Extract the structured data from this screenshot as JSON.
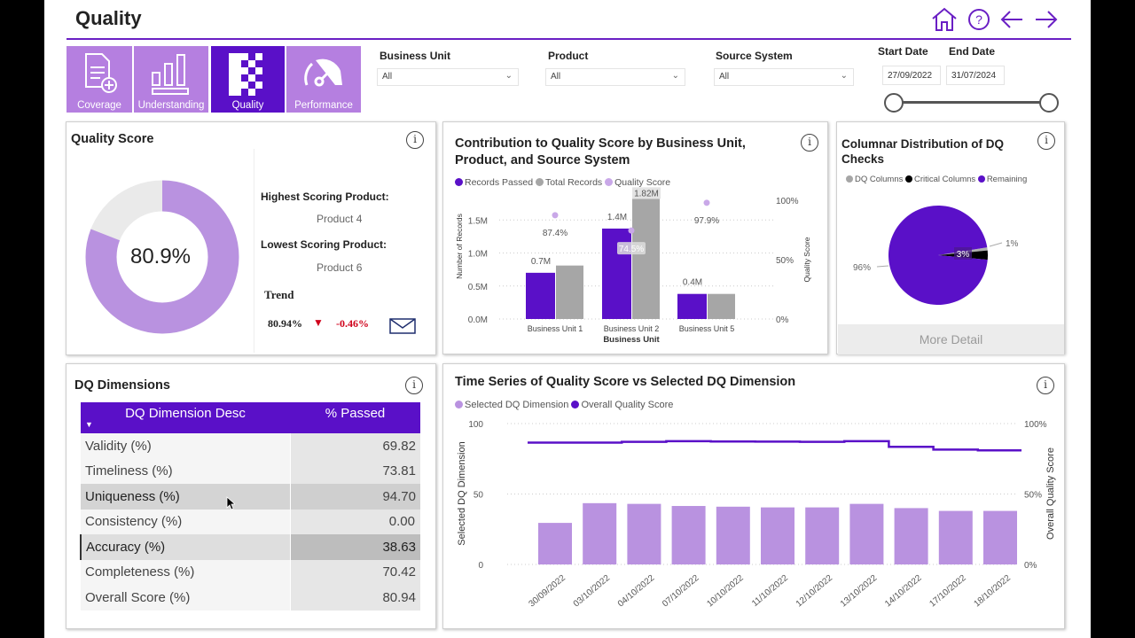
{
  "header": {
    "title": "Quality",
    "icons": [
      "home-icon",
      "help-icon",
      "back-arrow-icon",
      "forward-arrow-icon"
    ]
  },
  "nav": {
    "tiles": [
      {
        "label": "Coverage",
        "icon": "document-add-icon"
      },
      {
        "label": "Understanding",
        "icon": "bar-chart-icon"
      },
      {
        "label": "Quality",
        "icon": "checker-icon",
        "selected": true
      },
      {
        "label": "Performance",
        "icon": "gauge-icon"
      }
    ]
  },
  "filters": {
    "business_unit": {
      "label": "Business Unit",
      "value": "All"
    },
    "product": {
      "label": "Product",
      "value": "All"
    },
    "source_system": {
      "label": "Source System",
      "value": "All"
    },
    "start_date": {
      "label": "Start Date",
      "value": "27/09/2022"
    },
    "end_date": {
      "label": "End Date",
      "value": "31/07/2024"
    }
  },
  "quality_score": {
    "title": "Quality Score",
    "value": "80.9%",
    "fraction": 0.809,
    "highest_label": "Highest Scoring Product:",
    "highest_value": "Product 4",
    "lowest_label": "Lowest Scoring Product:",
    "lowest_value": "Product 6",
    "trend_label": "Trend",
    "trend_value": "80.94%",
    "trend_change": "-0.46%",
    "trend_direction": "down"
  },
  "colors": {
    "accent": "#5a10c8",
    "light": "#b992e0",
    "grey": "#a6a6a6",
    "down": "#d0021b"
  },
  "chart_data": [
    {
      "type": "bar",
      "title": "Contribution to Quality Score by Business Unit, Product, and Source System",
      "xlabel": "Business Unit",
      "ylabel": "Number of Records",
      "y2label": "Quality Score",
      "categories": [
        "Business Unit 1",
        "Business Unit 2",
        "Business Unit 5"
      ],
      "series": [
        {
          "name": "Records Passed",
          "values": [
            0.7,
            1.37,
            0.38
          ],
          "labels": [
            "0.7M",
            "1.4M",
            "0.4M"
          ]
        },
        {
          "name": "Total Records",
          "values": [
            0.81,
            1.82,
            0.38
          ],
          "labels": [
            "",
            "1.82M",
            ""
          ]
        },
        {
          "name": "Quality Score",
          "type": "scatter",
          "axis": "right",
          "values": [
            87.4,
            74.5,
            97.9
          ],
          "labels": [
            "87.4%",
            "74.5%",
            "97.9%"
          ]
        }
      ],
      "yticks": [
        "0.0M",
        "0.5M",
        "1.0M",
        "1.5M"
      ],
      "y2ticks": [
        "0%",
        "50%",
        "100%"
      ],
      "ylim": [
        0,
        1.8
      ],
      "y2lim": [
        0,
        100
      ]
    },
    {
      "type": "pie",
      "title": "Columnar Distribution of DQ Checks",
      "legend": [
        "DQ Columns",
        "Critical Columns",
        "Remaining"
      ],
      "values": [
        1,
        3,
        96
      ],
      "labels": [
        "1%",
        "3%",
        "96%"
      ],
      "button": "More Detail"
    },
    {
      "type": "bar",
      "title": "Time Series of Quality Score vs Selected DQ Dimension",
      "ylabel": "Selected DQ Dimension",
      "y2label": "Overall Quality Score",
      "categories": [
        "30/09/2022",
        "03/10/2022",
        "04/10/2022",
        "07/10/2022",
        "10/10/2022",
        "11/10/2022",
        "12/10/2022",
        "13/10/2022",
        "14/10/2022",
        "17/10/2022",
        "18/10/2022"
      ],
      "series": [
        {
          "name": "Selected DQ Dimension",
          "values": [
            29.5,
            43.5,
            43,
            41.5,
            41,
            40.5,
            40.5,
            43,
            40,
            38,
            38
          ]
        },
        {
          "name": "Overall Quality Score",
          "type": "line",
          "axis": "right",
          "values": [
            86.5,
            86.5,
            87,
            87.5,
            87.3,
            87.2,
            87,
            87.5,
            83.5,
            81.5,
            81
          ]
        }
      ],
      "yticks": [
        "0",
        "50",
        "100"
      ],
      "y2ticks": [
        "0%",
        "50%",
        "100%"
      ],
      "ylim": [
        0,
        100
      ],
      "y2lim": [
        0,
        100
      ]
    }
  ],
  "dq_dimensions": {
    "title": "DQ Dimensions",
    "columns": [
      "DQ Dimension Desc",
      "% Passed"
    ],
    "rows": [
      [
        "Validity (%)",
        "69.82"
      ],
      [
        "Timeliness (%)",
        "73.81"
      ],
      [
        "Uniqueness (%)",
        "94.70"
      ],
      [
        "Consistency (%)",
        "0.00"
      ],
      [
        "Accuracy (%)",
        "38.63"
      ],
      [
        "Completeness (%)",
        "70.42"
      ],
      [
        "Overall Score (%)",
        "80.94"
      ]
    ]
  }
}
